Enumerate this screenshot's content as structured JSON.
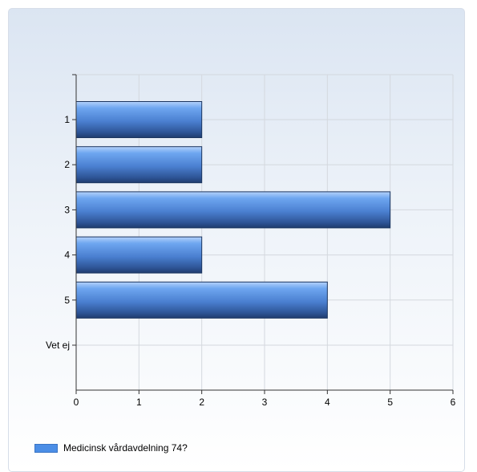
{
  "chart_data": {
    "type": "bar",
    "orientation": "horizontal",
    "categories": [
      "1",
      "2",
      "3",
      "4",
      "5",
      "Vet ej"
    ],
    "series": [
      {
        "name": "Medicinsk vårdavdelning 74?",
        "values": [
          2,
          2,
          5,
          2,
          4,
          0
        ]
      }
    ],
    "x_ticks": [
      "0",
      "1",
      "2",
      "3",
      "4",
      "5",
      "6"
    ],
    "xlim": [
      0,
      6
    ],
    "grid": true,
    "legend_position": "bottom-left",
    "bar_color": "#4b8ee6"
  }
}
